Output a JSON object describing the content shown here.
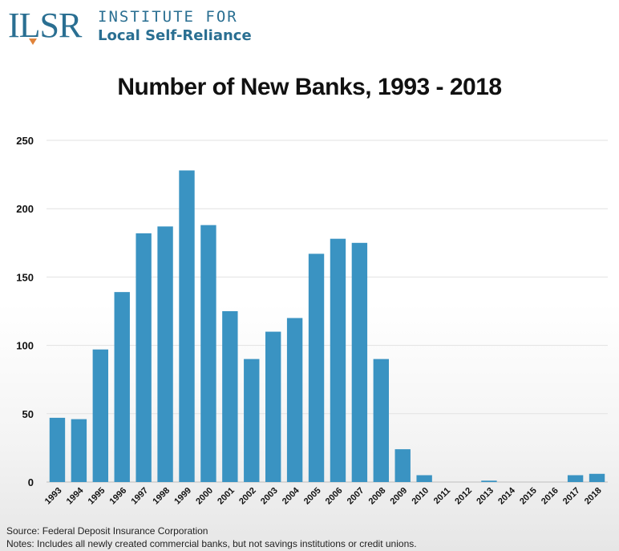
{
  "logo": {
    "mark": "ILSR",
    "line1": "INSTITUTE FOR",
    "line2": "Local Self-Reliance"
  },
  "footer": {
    "source": "Source: Federal Deposit Insurance Corporation",
    "notes": "Notes: Includes all newly created commercial banks, but not savings institutions or credit unions."
  },
  "chart_data": {
    "type": "bar",
    "title": "Number of New Banks, 1993 - 2018",
    "xlabel": "",
    "ylabel": "",
    "ylim": [
      0,
      250
    ],
    "yticks": [
      0,
      50,
      100,
      150,
      200,
      250
    ],
    "grid": true,
    "legend": "none",
    "bar_color": "#3a93c2",
    "categories": [
      "1993",
      "1994",
      "1995",
      "1996",
      "1997",
      "1998",
      "1999",
      "2000",
      "2001",
      "2002",
      "2003",
      "2004",
      "2005",
      "2006",
      "2007",
      "2008",
      "2009",
      "2010",
      "2011",
      "2012",
      "2013",
      "2014",
      "2015",
      "2016",
      "2017",
      "2018"
    ],
    "values": [
      47,
      46,
      97,
      139,
      182,
      187,
      228,
      188,
      125,
      90,
      110,
      120,
      167,
      178,
      175,
      90,
      24,
      5,
      0,
      0,
      1,
      0,
      0,
      0,
      5,
      6
    ]
  }
}
